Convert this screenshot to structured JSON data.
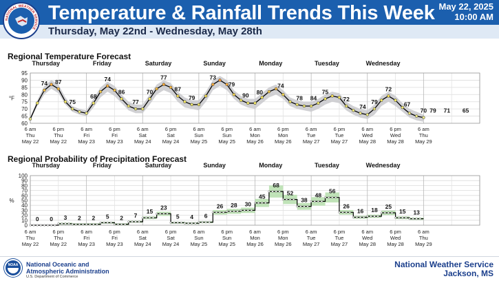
{
  "header": {
    "title": "Temperature & Rainfall Trends This Week",
    "issued_date": "May 22, 2025",
    "issued_time": "10:00 AM",
    "subtitle": "Thursday, May 22nd - Wednesday, May 28th",
    "logo_text": "NATIONAL WEATHER SERVICE"
  },
  "colors": {
    "banner": "#1b5fae",
    "subbar": "#dfe9f5",
    "temp_band": "#c9c9cd",
    "pop_band": "#b9e0b0",
    "pop_point": "#2e8b2e",
    "temp_line": "#000000"
  },
  "x_axis": {
    "labels": [
      {
        "time": "6 am",
        "day": "Thu",
        "date": "May 22"
      },
      {
        "time": "6 pm",
        "day": "Thu",
        "date": "May 22"
      },
      {
        "time": "6 am",
        "day": "Fri",
        "date": "May 23"
      },
      {
        "time": "6 pm",
        "day": "Fri",
        "date": "May 23"
      },
      {
        "time": "6 am",
        "day": "Sat",
        "date": "May 24"
      },
      {
        "time": "6 pm",
        "day": "Sat",
        "date": "May 24"
      },
      {
        "time": "6 am",
        "day": "Sun",
        "date": "May 25"
      },
      {
        "time": "6 pm",
        "day": "Sun",
        "date": "May 25"
      },
      {
        "time": "6 am",
        "day": "Mon",
        "date": "May 26"
      },
      {
        "time": "6 pm",
        "day": "Mon",
        "date": "May 26"
      },
      {
        "time": "6 am",
        "day": "Tue",
        "date": "May 27"
      },
      {
        "time": "6 pm",
        "day": "Tue",
        "date": "May 27"
      },
      {
        "time": "6 am",
        "day": "Wed",
        "date": "May 28"
      },
      {
        "time": "6 pm",
        "day": "Wed",
        "date": "May 28"
      },
      {
        "time": "6 am",
        "day": "Thu",
        "date": "May 29"
      }
    ],
    "day_names": [
      "Thursday",
      "Friday",
      "Saturday",
      "Sunday",
      "Monday",
      "Tuesday",
      "Wednesday"
    ]
  },
  "chart_data": [
    {
      "type": "line",
      "title": "Regional Temperature Forecast",
      "ylabel": "°F",
      "ylim": [
        60,
        95
      ],
      "yticks": [
        60,
        65,
        70,
        75,
        80,
        85,
        90,
        95
      ],
      "grid": true,
      "x_unit": "hours from 6 am Thu May 22",
      "x": [
        0,
        3,
        6,
        9,
        12,
        15,
        18,
        21,
        24,
        27,
        30,
        33,
        36,
        39,
        42,
        45,
        48,
        51,
        54,
        57,
        60,
        63,
        66,
        69,
        72,
        75,
        78,
        81,
        84,
        87,
        90,
        93,
        96,
        99,
        102,
        105,
        108,
        111,
        114,
        117,
        120,
        123,
        126,
        129,
        132,
        135,
        138,
        141,
        144,
        147,
        150,
        153,
        156,
        159,
        162,
        165,
        168
      ],
      "series": [
        {
          "values": [
            63,
            74,
            83,
            87,
            84,
            75,
            70,
            68,
            67,
            74,
            82,
            86,
            83,
            77,
            72,
            70,
            70,
            77,
            84,
            87,
            85,
            79,
            75,
            73,
            73,
            79,
            87,
            90,
            87,
            80,
            76,
            74,
            74,
            78,
            82,
            84,
            80,
            75,
            73,
            72,
            72,
            74,
            77,
            79,
            78,
            72,
            69,
            67,
            66,
            70,
            76,
            79,
            76,
            71,
            67,
            65,
            64
          ],
          "band_low": [
            62,
            72,
            80,
            84,
            81,
            73,
            68,
            66,
            65,
            71,
            78,
            82,
            79,
            74,
            69,
            67,
            67,
            73,
            80,
            83,
            81,
            75,
            71,
            70,
            69,
            75,
            83,
            86,
            83,
            77,
            73,
            71,
            70,
            74,
            78,
            80,
            77,
            72,
            70,
            69,
            68,
            70,
            73,
            75,
            74,
            69,
            66,
            64,
            63,
            66,
            72,
            75,
            72,
            68,
            64,
            62,
            61
          ],
          "band_high": [
            64,
            76,
            86,
            90,
            87,
            78,
            72,
            70,
            69,
            77,
            85,
            89,
            86,
            80,
            75,
            73,
            73,
            80,
            87,
            90,
            88,
            82,
            78,
            76,
            76,
            82,
            90,
            93,
            90,
            83,
            79,
            77,
            77,
            81,
            85,
            87,
            83,
            78,
            76,
            75,
            75,
            77,
            80,
            82,
            81,
            75,
            72,
            70,
            69,
            73,
            79,
            82,
            79,
            74,
            70,
            68,
            66
          ]
        }
      ],
      "annotations": [
        {
          "x": 6,
          "label": "74"
        },
        {
          "x": 12,
          "label": "87"
        },
        {
          "x": 18,
          "label": "75"
        },
        {
          "x": 27,
          "label": "68"
        },
        {
          "x": 33,
          "label": "74"
        },
        {
          "x": 39,
          "label": "86"
        },
        {
          "x": 45,
          "label": "77"
        },
        {
          "x": 51,
          "label": "70"
        },
        {
          "x": 57,
          "label": "77"
        },
        {
          "x": 63,
          "label": "87"
        },
        {
          "x": 69,
          "label": "79"
        },
        {
          "x": 78,
          "label": "73"
        },
        {
          "x": 86,
          "label": "79"
        },
        {
          "x": 92,
          "label": "90"
        },
        {
          "x": 98,
          "label": "80"
        },
        {
          "x": 107,
          "label": "74"
        },
        {
          "x": 115,
          "label": "78"
        },
        {
          "x": 121,
          "label": "84"
        },
        {
          "x": 126,
          "label": "75"
        },
        {
          "x": 135,
          "label": "72"
        },
        {
          "x": 142,
          "label": "74"
        },
        {
          "x": 147,
          "label": "79"
        },
        {
          "x": 153,
          "label": "72"
        },
        {
          "x": 161,
          "label": "67"
        },
        {
          "x": 168,
          "label": "70"
        },
        {
          "x": 172,
          "label": "79"
        },
        {
          "x": 178,
          "label": "71"
        },
        {
          "x": 186,
          "label": "65"
        }
      ]
    },
    {
      "type": "line",
      "title": "Regional Probability of Precipitation Forecast",
      "ylabel": "%",
      "ylim": [
        0,
        100
      ],
      "yticks": [
        0,
        10,
        20,
        30,
        40,
        50,
        60,
        70,
        80,
        90,
        100
      ],
      "grid": true,
      "x_unit": "hours from 6 am Thu May 22",
      "periods": [
        {
          "x0": 0,
          "x1": 6,
          "value": 0
        },
        {
          "x0": 6,
          "x1": 12,
          "value": 0
        },
        {
          "x0": 12,
          "x1": 18,
          "value": 3
        },
        {
          "x0": 18,
          "x1": 24,
          "value": 2
        },
        {
          "x0": 24,
          "x1": 30,
          "value": 2
        },
        {
          "x0": 30,
          "x1": 36,
          "value": 5
        },
        {
          "x0": 36,
          "x1": 42,
          "value": 2
        },
        {
          "x0": 42,
          "x1": 48,
          "value": 7
        },
        {
          "x0": 48,
          "x1": 54,
          "value": 15
        },
        {
          "x0": 54,
          "x1": 60,
          "value": 23
        },
        {
          "x0": 60,
          "x1": 66,
          "value": 5
        },
        {
          "x0": 66,
          "x1": 72,
          "value": 4
        },
        {
          "x0": 72,
          "x1": 78,
          "value": 6
        },
        {
          "x0": 78,
          "x1": 84,
          "value": 26
        },
        {
          "x0": 84,
          "x1": 90,
          "value": 28
        },
        {
          "x0": 90,
          "x1": 96,
          "value": 30
        },
        {
          "x0": 96,
          "x1": 102,
          "value": 45
        },
        {
          "x0": 102,
          "x1": 108,
          "value": 68
        },
        {
          "x0": 108,
          "x1": 114,
          "value": 52
        },
        {
          "x0": 114,
          "x1": 120,
          "value": 38
        },
        {
          "x0": 120,
          "x1": 126,
          "value": 48
        },
        {
          "x0": 126,
          "x1": 132,
          "value": 56
        },
        {
          "x0": 132,
          "x1": 138,
          "value": 26
        },
        {
          "x0": 138,
          "x1": 144,
          "value": 16
        },
        {
          "x0": 144,
          "x1": 150,
          "value": 18
        },
        {
          "x0": 150,
          "x1": 156,
          "value": 25
        },
        {
          "x0": 156,
          "x1": 162,
          "value": 15
        },
        {
          "x0": 162,
          "x1": 168,
          "value": 13
        }
      ]
    }
  ],
  "footer": {
    "noaa_line1": "National Oceanic and",
    "noaa_line2": "Atmospheric Administration",
    "noaa_dept": "U.S. Department of Commerce",
    "nws_line1": "National Weather Service",
    "nws_line2": "Jackson, MS",
    "noaa_logo_text": "NOAA"
  }
}
